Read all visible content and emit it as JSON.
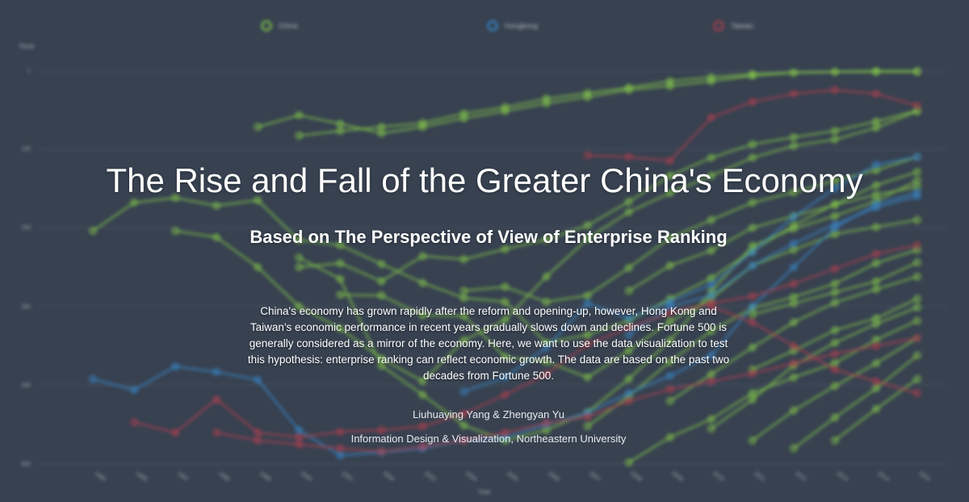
{
  "title": "The Rise and Fall of the Greater China's Economy",
  "subtitle": "Based on The Perspective of View of Enterprise Ranking",
  "description": "China's economy has grown rapidly after the reform and opening-up, however, Hong Kong and Taiwan's economic performance in recent years gradually slows down and declines. Fortune 500 is generally considered as a mirror of the economy. Here, we want to use the data visualization to test this hypothesis: enterprise ranking can reflect economic growth. The data are based on the past two decades from Fortune 500.",
  "authors": "Liuhuaying Yang & Zhengyan Yu",
  "affiliation": "Information Design & Visualization, Northeastern University",
  "colors": {
    "background": "#374150",
    "china": "#8cd44a",
    "hongkong": "#3a8fd6",
    "taiwan": "#c0404f",
    "grid": "#4a5464"
  },
  "chart_data": {
    "type": "line",
    "xlabel": "Year",
    "ylabel": "Rank",
    "x": [
      1995,
      1996,
      1997,
      1998,
      1999,
      2000,
      2001,
      2002,
      2003,
      2004,
      2005,
      2006,
      2007,
      2008,
      2009,
      2010,
      2011,
      2012,
      2013,
      2014,
      2015
    ],
    "ylim": [
      1,
      500
    ],
    "yticks": [
      1,
      100,
      200,
      300,
      400,
      500
    ],
    "y_reversed": true,
    "grid": true,
    "legend": {
      "position": "top-center",
      "entries": [
        "China",
        "Hongkong",
        "Taiwan"
      ]
    },
    "series": [
      {
        "name": "China",
        "color": "#8cd44a",
        "values": [
          204,
          168,
          162,
          172,
          165,
          216,
          222,
          246,
          270,
          289,
          294,
          346,
          336,
          318,
          290,
          264,
          229,
          197,
          170,
          146,
          129
        ]
      },
      {
        "name": "China",
        "color": "#8cd44a",
        "values": [
          null,
          null,
          null,
          null,
          72,
          57,
          68,
          80,
          72,
          61,
          52,
          42,
          34,
          25,
          20,
          14,
          7,
          3,
          2,
          1,
          1
        ]
      },
      {
        "name": "China",
        "color": "#8cd44a",
        "values": [
          null,
          null,
          null,
          null,
          null,
          83,
          77,
          72,
          67,
          55,
          47,
          36,
          29,
          22,
          14,
          9,
          5,
          3,
          2,
          2,
          2
        ]
      },
      {
        "name": "China",
        "color": "#8cd44a",
        "values": [
          null,
          null,
          204,
          212,
          250,
          300,
          328,
          366,
          395,
          343,
          317,
          262,
          214,
          180,
          156,
          134,
          111,
          96,
          88,
          73,
          52
        ]
      },
      {
        "name": "China",
        "color": "#8cd44a",
        "values": [
          null,
          null,
          null,
          null,
          null,
          250,
          245,
          268,
          236,
          240,
          227,
          215,
          197,
          167,
          134,
          111,
          94,
          85,
          77,
          65,
          51
        ]
      },
      {
        "name": "China",
        "color": "#8cd44a",
        "values": [
          null,
          null,
          null,
          null,
          null,
          238,
          265,
          375,
          412,
          451,
          470,
          457,
          434,
          392,
          343,
          281,
          223,
          201,
          185,
          166,
          140
        ]
      },
      {
        "name": "China",
        "color": "#8cd44a",
        "values": [
          null,
          null,
          null,
          null,
          null,
          null,
          285,
          286,
          311,
          312,
          364,
          370,
          390,
          356,
          319,
          290,
          248,
          228,
          208,
          199,
          190
        ]
      },
      {
        "name": "China",
        "color": "#8cd44a",
        "values": [
          null,
          null,
          null,
          null,
          null,
          null,
          null,
          null,
          null,
          280,
          275,
          294,
          286,
          251,
          213,
          190,
          168,
          155,
          140,
          127,
          110
        ]
      },
      {
        "name": "China",
        "color": "#8cd44a",
        "values": [
          null,
          null,
          null,
          null,
          null,
          null,
          null,
          null,
          null,
          null,
          null,
          null,
          null,
          280,
          248,
          229,
          200,
          185,
          171,
          158,
          148
        ]
      },
      {
        "name": "China",
        "color": "#8cd44a",
        "values": [
          null,
          null,
          null,
          null,
          null,
          null,
          null,
          null,
          null,
          null,
          null,
          null,
          452,
          414,
          370,
          331,
          302,
          288,
          271,
          245,
          228
        ]
      },
      {
        "name": "China",
        "color": "#8cd44a",
        "values": [
          null,
          null,
          null,
          null,
          null,
          null,
          null,
          null,
          null,
          null,
          null,
          null,
          null,
          null,
          420,
          386,
          352,
          320,
          295,
          278,
          262
        ]
      },
      {
        "name": "China",
        "color": "#8cd44a",
        "values": [
          null,
          null,
          null,
          null,
          null,
          null,
          null,
          null,
          null,
          null,
          null,
          null,
          null,
          null,
          null,
          455,
          418,
          375,
          346,
          322,
          301
        ]
      },
      {
        "name": "China",
        "color": "#8cd44a",
        "values": [
          null,
          null,
          null,
          null,
          null,
          null,
          null,
          null,
          null,
          null,
          null,
          null,
          null,
          null,
          null,
          null,
          470,
          432,
          401,
          372,
          340
        ]
      },
      {
        "name": "China",
        "color": "#8cd44a",
        "values": [
          null,
          null,
          null,
          null,
          null,
          null,
          null,
          null,
          null,
          null,
          null,
          null,
          null,
          null,
          null,
          null,
          380,
          356,
          330,
          315,
          290
        ]
      },
      {
        "name": "China",
        "color": "#8cd44a",
        "values": [
          null,
          null,
          null,
          null,
          null,
          null,
          null,
          null,
          null,
          null,
          null,
          null,
          null,
          null,
          null,
          null,
          null,
          480,
          441,
          404,
          362
        ]
      },
      {
        "name": "China",
        "color": "#8cd44a",
        "values": [
          null,
          null,
          null,
          null,
          null,
          null,
          null,
          null,
          null,
          null,
          null,
          null,
          null,
          498,
          466,
          443,
          410,
          390,
          372,
          342,
          318
        ]
      },
      {
        "name": "China",
        "color": "#8cd44a",
        "values": [
          null,
          null,
          null,
          null,
          null,
          null,
          null,
          null,
          null,
          null,
          null,
          null,
          null,
          null,
          null,
          null,
          null,
          null,
          470,
          430,
          392
        ]
      },
      {
        "name": "China",
        "color": "#8cd44a",
        "values": [
          null,
          null,
          null,
          null,
          null,
          null,
          null,
          null,
          null,
          null,
          null,
          null,
          null,
          null,
          null,
          null,
          310,
          296,
          282,
          268,
          244
        ]
      },
      {
        "name": "Hongkong",
        "color": "#3a8fd6",
        "values": [
          392,
          406,
          376,
          383,
          393,
          457,
          489,
          485,
          480,
          470,
          466,
          450,
          435,
          410,
          388,
          362,
          300,
          250,
          200,
          170,
          155
        ]
      },
      {
        "name": "Hongkong",
        "color": "#3a8fd6",
        "values": [
          null,
          null,
          null,
          null,
          null,
          null,
          null,
          null,
          null,
          408,
          390,
          352,
          296,
          315,
          294,
          272,
          231,
          186,
          150,
          120,
          110
        ]
      },
      {
        "name": "Hongkong",
        "color": "#3a8fd6",
        "values": [
          null,
          null,
          null,
          null,
          null,
          null,
          null,
          null,
          null,
          null,
          null,
          null,
          null,
          336,
          300,
          286,
          248,
          220,
          196,
          174,
          160
        ]
      },
      {
        "name": "Taiwan",
        "color": "#c0404f",
        "values": [
          null,
          447,
          460,
          418,
          460,
          466,
          459,
          457,
          452,
          436,
          412,
          386,
          348,
          327,
          308,
          296,
          287,
          271,
          252,
          233,
          222
        ]
      },
      {
        "name": "Taiwan",
        "color": "#c0404f",
        "values": [
          null,
          null,
          null,
          460,
          470,
          475,
          480,
          484,
          478,
          470,
          460,
          448,
          440,
          420,
          405,
          395,
          385,
          372,
          360,
          350,
          340
        ]
      },
      {
        "name": "Taiwan",
        "color": "#c0404f",
        "values": [
          null,
          null,
          null,
          null,
          null,
          null,
          null,
          null,
          null,
          null,
          null,
          null,
          108,
          110,
          115,
          60,
          40,
          30,
          25,
          30,
          45
        ]
      },
      {
        "name": "Taiwan",
        "color": "#c0404f",
        "values": [
          null,
          null,
          null,
          null,
          null,
          null,
          null,
          null,
          null,
          null,
          null,
          null,
          null,
          null,
          null,
          300,
          320,
          350,
          380,
          395,
          410
        ]
      }
    ]
  }
}
